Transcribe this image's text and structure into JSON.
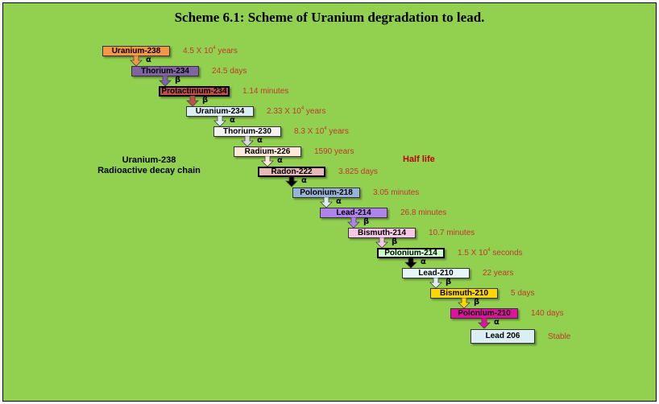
{
  "title": "Scheme 6.1: Scheme of Uranium degradation to lead.",
  "chain_label": {
    "line1": "Uranium-238",
    "line2": "Radioactive decay chain"
  },
  "halflife_label": "Half life",
  "nodes": [
    {
      "name": "Uranium-238",
      "fill": "#f79646",
      "half_life": "4.5 X 10",
      "exp": "4",
      "unit": " years",
      "decay": "α",
      "arrow": "#f79646"
    },
    {
      "name": "Thorium-234",
      "fill": "#8064a2",
      "half_life": "24.5 days",
      "decay": "β",
      "arrow": "#8064a2"
    },
    {
      "name": "Protactinium-234",
      "fill": "#c0504d",
      "half_life": "1.14 minutes",
      "decay": "β",
      "arrow": "#c0504d"
    },
    {
      "name": "Uranium-234",
      "fill": "#dbeef3",
      "half_life": "2.33 X 10",
      "exp": "4",
      "unit": " years",
      "decay": "α",
      "arrow": "#dbeef3"
    },
    {
      "name": "Thorium-230",
      "fill": "#f2f2f2",
      "half_life": "8.3 X 10",
      "exp": "4",
      "unit": " years",
      "decay": "α",
      "arrow": "#d9d9d9"
    },
    {
      "name": "Radium-226",
      "fill": "#fde9d9",
      "half_life": "1590 years",
      "decay": "α",
      "arrow": "#fde9d9"
    },
    {
      "name": "Radon-222",
      "fill": "#e6b9b8",
      "half_life": "3.825 days",
      "decay": "α",
      "arrow": "#000000"
    },
    {
      "name": "Polonium-218",
      "fill": "#95b3d7",
      "half_life": "3.05 minutes",
      "decay": "α",
      "arrow": "#dbeef3"
    },
    {
      "name": "Lead-214",
      "fill": "#b083ec",
      "half_life": "26.8 minutes",
      "decay": "β",
      "arrow": "#b083ec"
    },
    {
      "name": "Bismuth-214",
      "fill": "#f8c6e6",
      "half_life": "10.7 minutes",
      "decay": "β",
      "arrow": "#f8c6e6"
    },
    {
      "name": "Polonium-214",
      "fill": "#ccffcc",
      "half_life": "1.5 X 10",
      "exp": "4",
      "unit": " seconds",
      "decay": "α",
      "arrow": "#000000"
    },
    {
      "name": "Lead-210",
      "fill": "#e6f7fb",
      "half_life": "22 years",
      "decay": "β",
      "arrow": "#dbeef3"
    },
    {
      "name": "Bismuth-210",
      "fill": "#ffd700",
      "half_life": "5 days",
      "decay": "β",
      "arrow": "#ffd700"
    },
    {
      "name": "Polonium-210",
      "fill": "#e0119f",
      "half_life": "140 days",
      "decay": "α",
      "arrow": "#e0119f"
    },
    {
      "name": "Lead 206",
      "fill": "#dbeef3",
      "half_life": "Stable"
    }
  ]
}
